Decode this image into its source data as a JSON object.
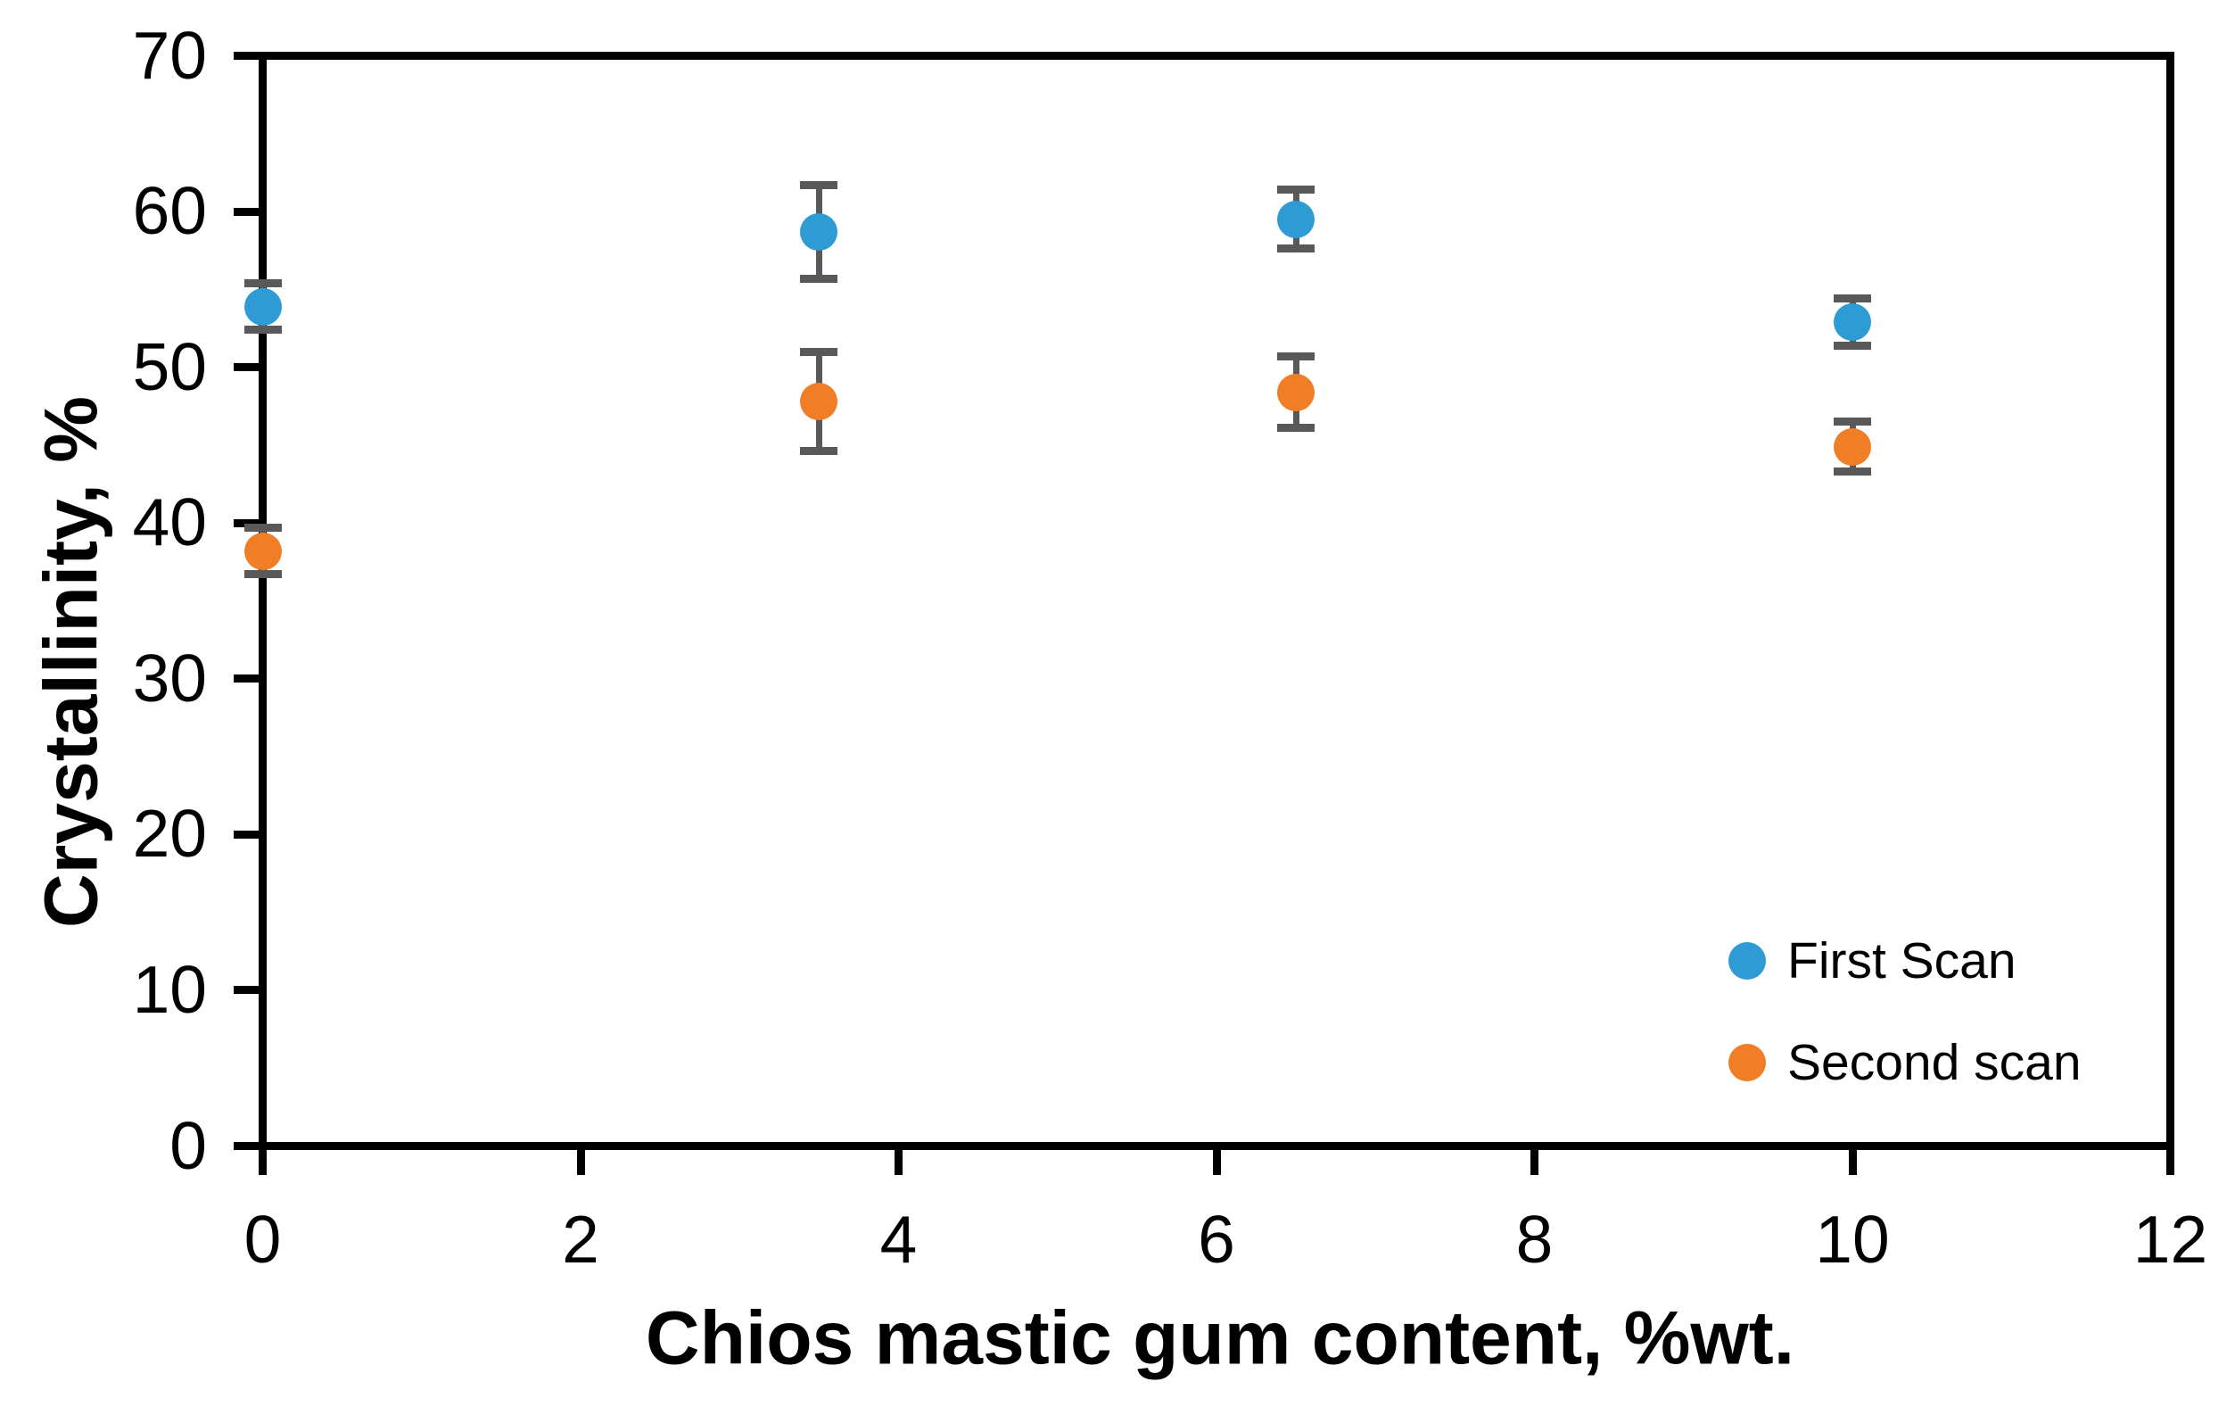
{
  "figure": {
    "background": "#ffffff",
    "axis_color": "#000000",
    "tick_label_color": "#000000"
  },
  "chart_data": {
    "type": "scatter",
    "title": "",
    "xlabel": "Chios mastic gum content, %wt.",
    "ylabel": "Crystallinity, %",
    "xlim": [
      0,
      12
    ],
    "ylim": [
      0,
      70
    ],
    "xticks": [
      0,
      2,
      4,
      6,
      8,
      10,
      12
    ],
    "yticks": [
      0,
      10,
      20,
      30,
      40,
      50,
      60,
      70
    ],
    "grid": false,
    "legend_position": "inside-bottom-right",
    "error_bar_color": "#595959",
    "x": [
      0,
      3.5,
      6.5,
      10
    ],
    "series": [
      {
        "name": "First Scan",
        "color": "#2E9BD5",
        "values": [
          53.9,
          58.7,
          59.5,
          52.9
        ],
        "yerr": [
          1.5,
          3.0,
          1.9,
          1.5
        ]
      },
      {
        "name": "Second scan",
        "color": "#F07E27",
        "values": [
          38.2,
          47.8,
          48.4,
          44.9
        ],
        "yerr": [
          1.5,
          3.2,
          2.3,
          1.6
        ]
      }
    ]
  }
}
